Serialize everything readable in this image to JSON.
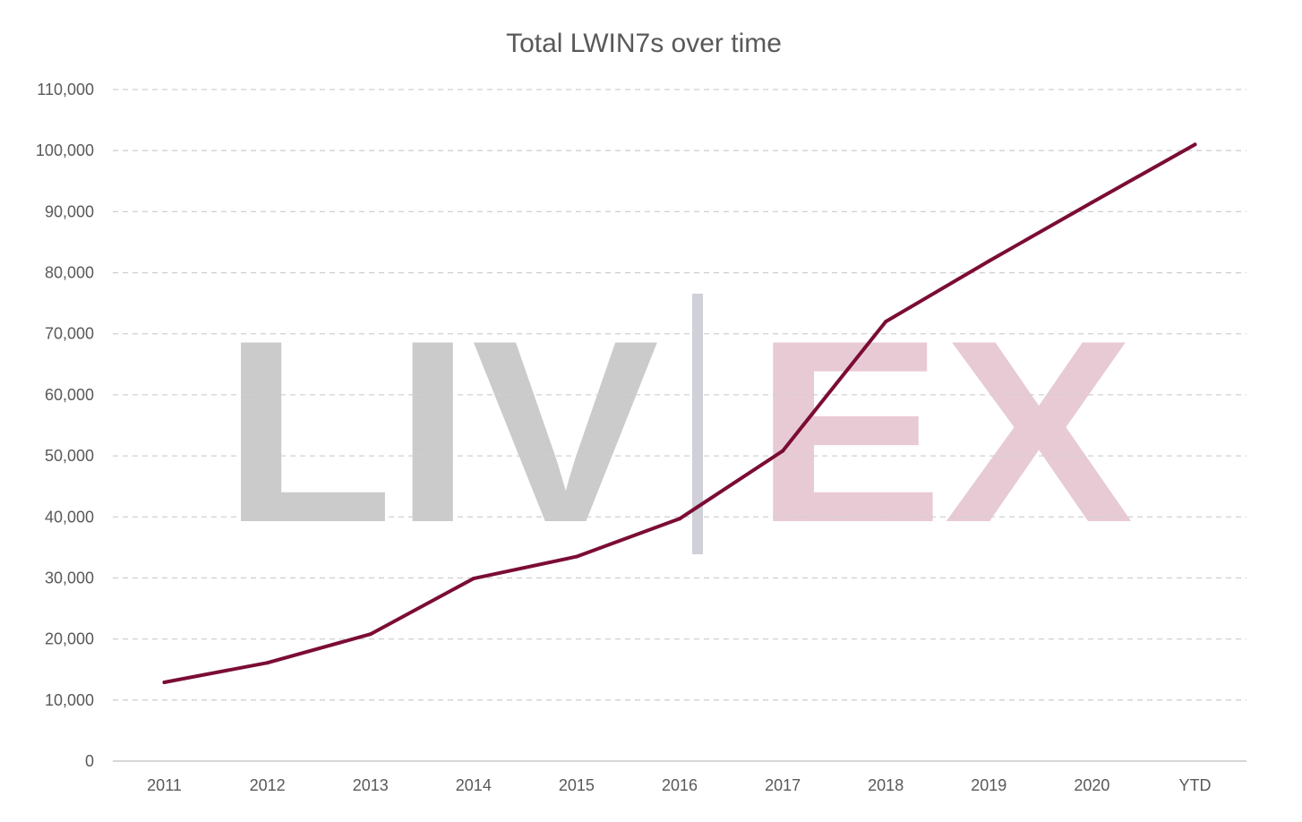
{
  "chart_data": {
    "type": "line",
    "title": "Total LWIN7s over time",
    "xlabel": "",
    "ylabel": "",
    "categories": [
      "2011",
      "2012",
      "2013",
      "2014",
      "2015",
      "2016",
      "2017",
      "2018",
      "2019",
      "2020",
      "YTD"
    ],
    "series": [
      {
        "values": [
          12900,
          16100,
          20800,
          29900,
          33500,
          39700,
          50800,
          72000,
          81900,
          91500,
          101000
        ],
        "color": "#7b0c35"
      }
    ],
    "ylim": [
      0,
      110000
    ],
    "yticks": [
      0,
      10000,
      20000,
      30000,
      40000,
      50000,
      60000,
      70000,
      80000,
      90000,
      100000,
      110000
    ],
    "ytick_labels": [
      "0",
      "10,000",
      "20,000",
      "30,000",
      "40,000",
      "50,000",
      "60,000",
      "70,000",
      "80,000",
      "90,000",
      "100,000",
      "110,000"
    ],
    "grid": true,
    "grid_style": "dashed",
    "legend": false
  },
  "watermark": {
    "left_text": "LIV",
    "right_text": "EX",
    "left_color": "#cbcbcb",
    "right_color": "#e8cad4",
    "divider_color": "#d0d0d8"
  },
  "colors": {
    "text": "#595959",
    "grid": "#d0d0d0",
    "axis": "#c8c8c8"
  }
}
